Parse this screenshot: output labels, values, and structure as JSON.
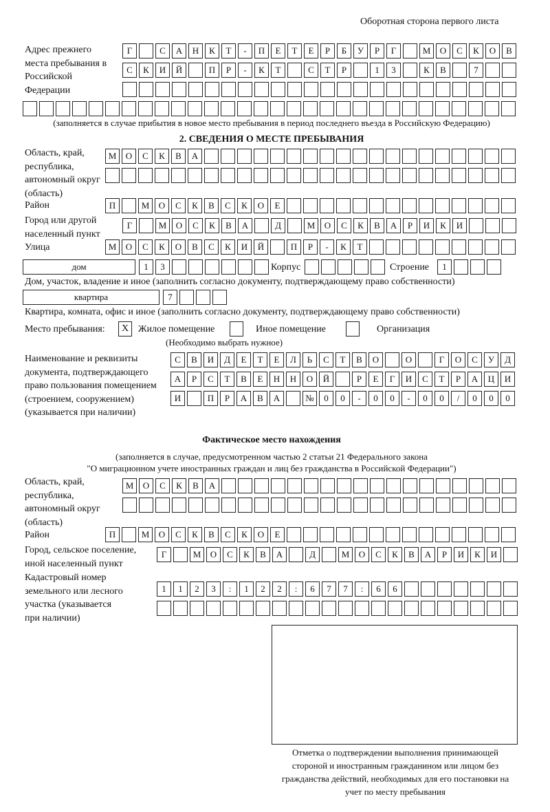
{
  "header": "Оборотная сторона первого листа",
  "prev_address": {
    "label": "Адрес прежнего места пребывания в Российской Федерации",
    "rows": [
      "Г САНКТ-ПЕТЕРБУРГ МОСКОВ",
      "СКИЙ ПР-КТ СТР 13 КВ 7  ",
      "                        ",
      "                              "
    ],
    "note": "(заполняется в случае прибытия в новое место пребывания в период последнего въезда в Российскую Федерацию)"
  },
  "section2": {
    "title": "2. СВЕДЕНИЯ О МЕСТЕ ПРЕБЫВАНИЯ",
    "region_label": "Область, край, республика, автономный округ (область)",
    "region_rows": [
      "МОСКВА                   ",
      "                         "
    ],
    "district_label": "Район",
    "district_row": "П МОСКВСКОЕ              ",
    "city_label": "Город или другой населенный пункт",
    "city_row": "Г МОСКВА Д МОСКВАРИКИ   ",
    "street_label": "Улица",
    "street_row": "МОСКОВСКИЙ ПР-КТ         ",
    "house_type": "дом",
    "house_row": "13      ",
    "korpus_label": "Корпус",
    "korpus_row": "     ",
    "building_label": "Строение",
    "building_row": "1   ",
    "house_note": "Дом, участок, владение и иное (заполнить согласно документу, подтверждающему право собственности)",
    "flat_type": "квартира",
    "flat_row": "7   ",
    "flat_note": "Квартира, комната, офис и иное (заполнить согласно документу, подтверждающему право собственности)",
    "stay_label": "Место пребывания:",
    "options": [
      {
        "label": "Жилое помещение",
        "mark": "X"
      },
      {
        "label": "Иное помещение",
        "mark": ""
      },
      {
        "label": "Организация",
        "mark": ""
      }
    ],
    "select_note": "(Необходимо выбрать нужное)",
    "doc_label": "Наименование и реквизиты документа, подтверждающего право пользования помещением (строением, сооружением) (указывается при наличии)",
    "doc_rows": [
      "СВИДЕТЕЛЬСТВО О ГОСУД",
      "АРСТВЕННОЙ РЕГИСТРАЦИ",
      "И ПРАВА №00-00-00/000"
    ]
  },
  "actual": {
    "title": "Фактическое место нахождения",
    "note1": "(заполняется в случае, предусмотренном частью 2 статьи 21 Федерального закона",
    "note2": "\"О миграционном учете иностранных граждан и лиц без гражданства в Российской Федерации\")",
    "region_label": "Область, край, республика, автономный округ (область)",
    "region_rows": [
      "МОСКВА                  ",
      "                        "
    ],
    "district_label": "Район",
    "district_row": "П МОСКВСКОЕ              ",
    "city_label": "Город, сельское поселение, иной населенный пункт",
    "city_row": "Г МОСКВА Д МОСКВАРИКИ ",
    "cadastre_label": "Кадастровый номер земельного или лесного участка (указывается при наличии)",
    "cadastre_rows": [
      "1123:122:677:66       ",
      "                      "
    ]
  },
  "stamp_caption": "Отметка о подтверждении выполнения принимающей стороной и иностранным гражданином или лицом без гражданства действий, необходимых для его постановки на учет по месту пребывания"
}
